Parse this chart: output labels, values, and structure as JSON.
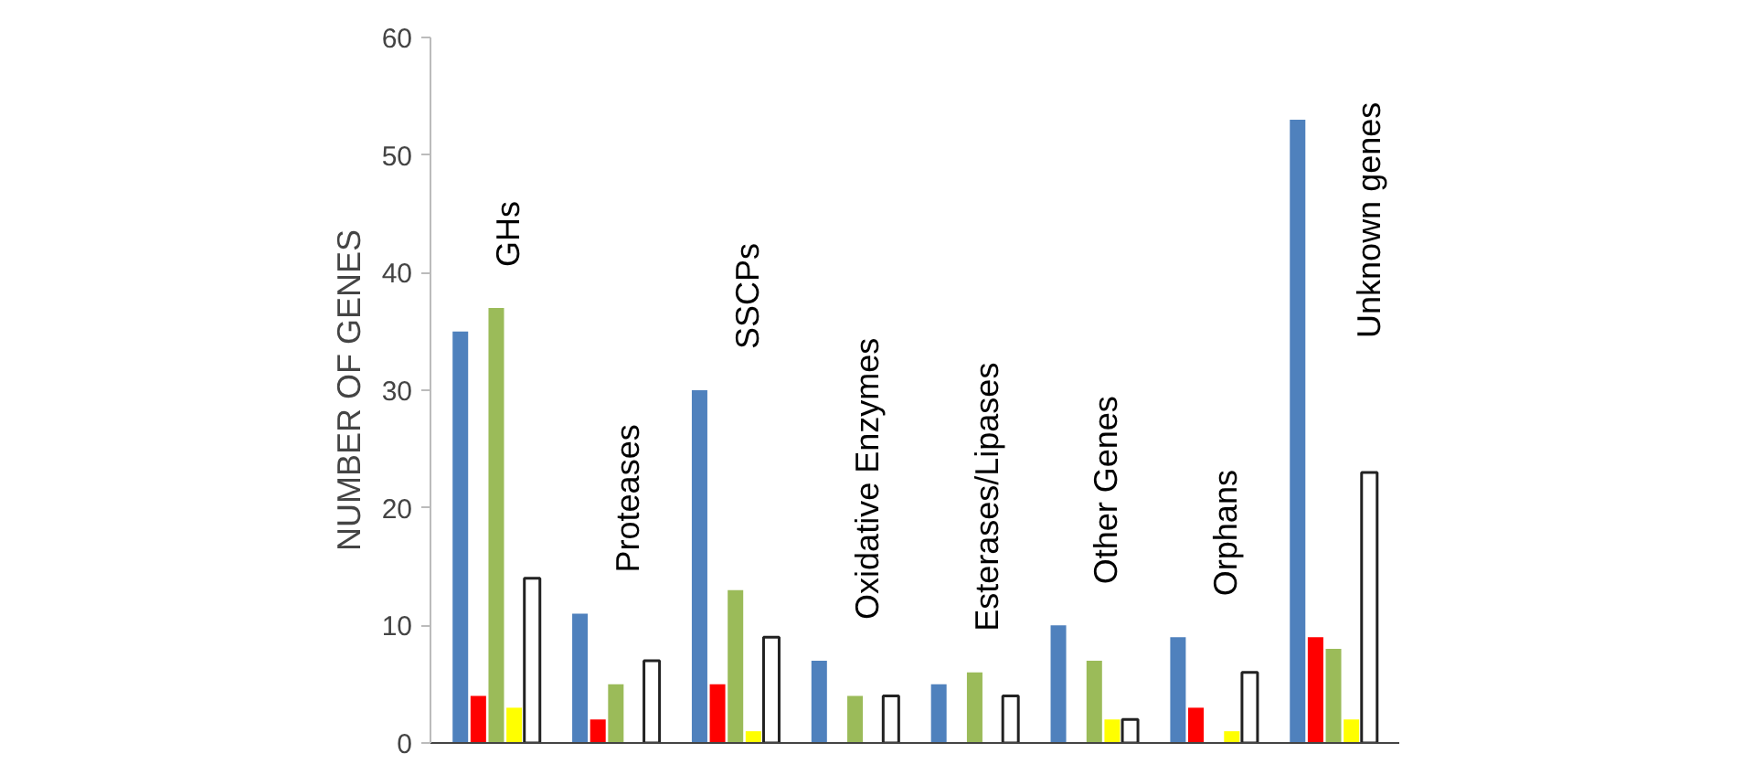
{
  "chart_data": {
    "type": "bar",
    "ylabel": "NUMBER OF GENES",
    "categories": [
      "GHs",
      "Proteases",
      "SSCPs",
      "Oxidative Enzymes",
      "Esterases/Lipases",
      "Other Genes",
      "Orphans",
      "Unknown genes"
    ],
    "series": [
      {
        "color": "#4f81bd",
        "values": [
          35,
          11,
          30,
          7,
          5,
          10,
          9,
          53
        ]
      },
      {
        "color": "#ff0000",
        "values": [
          4,
          2,
          5,
          0,
          0,
          0,
          3,
          9
        ]
      },
      {
        "color": "#9bbb59",
        "values": [
          37,
          5,
          13,
          4,
          6,
          7,
          0,
          8
        ]
      },
      {
        "color": "#ffff00",
        "values": [
          3,
          0,
          1,
          0,
          0,
          2,
          1,
          2
        ]
      },
      {
        "color": "#ffffff",
        "values": [
          14,
          7,
          9,
          4,
          4,
          2,
          6,
          23
        ]
      }
    ],
    "ylim": [
      0,
      60
    ],
    "yticks": [
      0,
      10,
      20,
      30,
      40,
      50,
      60
    ],
    "grid": false,
    "tick_labels": "y"
  }
}
